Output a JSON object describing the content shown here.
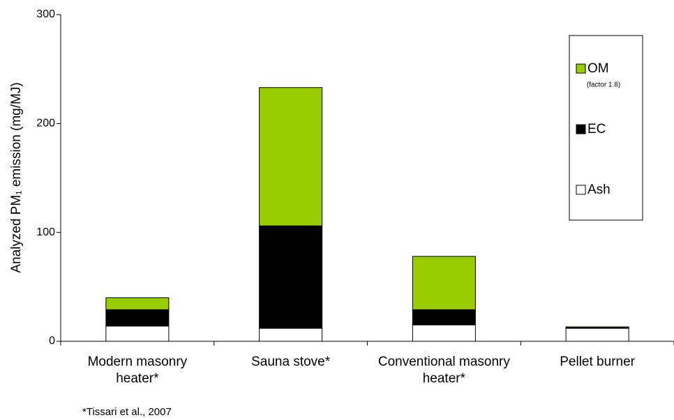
{
  "chart_data": {
    "type": "stacked_bar",
    "y_label": "Analyzed PM₁ emission (mg/MJ)",
    "annotation": "*Tissari et al., 2007",
    "categories": [
      "Modern masonry heater*",
      "Sauna stove*",
      "Conventional masonry heater*",
      "Pellet burner"
    ],
    "series": [
      {
        "name": "Ash",
        "color": "#ffffff",
        "values": [
          14,
          12,
          15,
          12
        ]
      },
      {
        "name": "EC",
        "color": "#000000",
        "values": [
          15,
          94,
          14,
          0.5
        ]
      },
      {
        "name": "OM",
        "note_label": "(factor 1.8)",
        "color": "#99cc00",
        "values": [
          11,
          127,
          49,
          0.8
        ]
      }
    ],
    "ylim": [
      0,
      300
    ],
    "yticks": [
      0,
      100,
      200,
      300
    ],
    "grid": false
  }
}
